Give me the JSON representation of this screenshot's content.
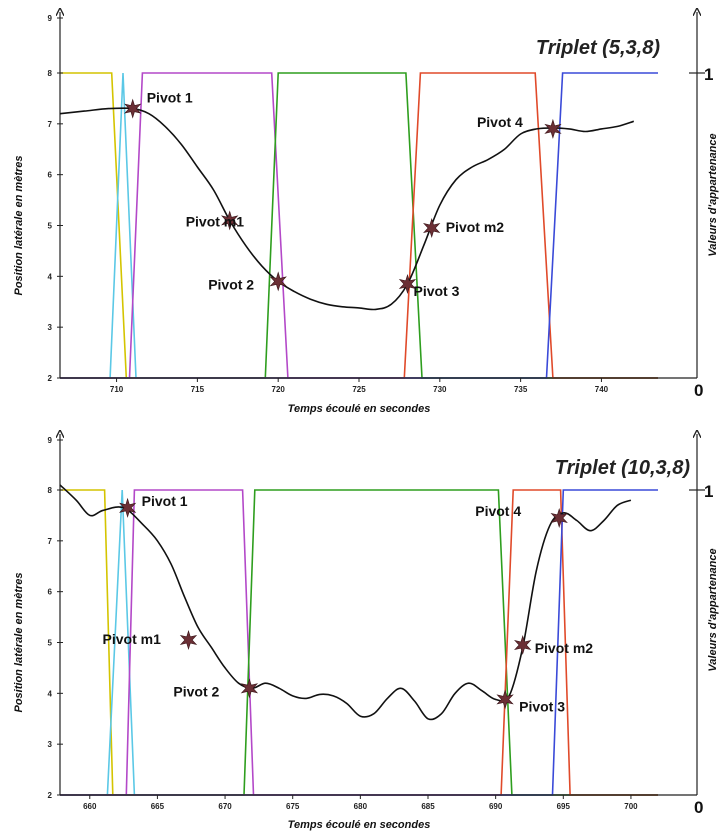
{
  "chart_data": [
    {
      "type": "line",
      "title": "Triplet (5,3,8)",
      "xlabel": "Temps écoulé en secondes",
      "ylabel": "Position latérale en mètres",
      "y2label": "Valeurs d'appartenance",
      "y2ticks": [
        "1",
        "0"
      ],
      "xlim": [
        706.5,
        743.5
      ],
      "ylim": [
        2,
        9
      ],
      "xticks": [
        710,
        715,
        720,
        725,
        730,
        735,
        740
      ],
      "yticks": [
        2,
        3,
        4,
        5,
        6,
        7,
        8,
        9
      ],
      "trajectory": {
        "x": [
          706.5,
          708,
          709.5,
          711,
          712,
          713,
          714,
          715,
          716,
          717,
          718,
          719,
          720,
          721,
          722,
          723,
          724,
          725,
          726,
          727,
          728,
          729,
          730,
          731,
          732,
          733,
          734,
          735,
          736,
          737,
          738,
          739,
          740,
          741,
          742
        ],
        "y": [
          7.2,
          7.25,
          7.3,
          7.3,
          7.2,
          6.95,
          6.6,
          6.15,
          5.7,
          5.1,
          4.6,
          4.2,
          3.9,
          3.7,
          3.55,
          3.45,
          3.4,
          3.38,
          3.35,
          3.45,
          3.85,
          4.6,
          5.4,
          5.9,
          6.15,
          6.3,
          6.5,
          6.8,
          6.9,
          6.92,
          6.9,
          6.85,
          6.9,
          6.95,
          7.05
        ]
      },
      "membership_series": [
        {
          "color": "#d4c400",
          "x": [
            706.5,
            709.7,
            710.6,
            743.5
          ],
          "y": [
            1,
            1,
            0,
            0
          ]
        },
        {
          "color": "#5bc8e6",
          "x": [
            706.5,
            709.6,
            710.4,
            711.2,
            743.5
          ],
          "y": [
            0,
            0,
            1,
            0,
            0
          ]
        },
        {
          "color": "#b348c8",
          "x": [
            706.5,
            710.8,
            711.6,
            719.6,
            720.6,
            743.5
          ],
          "y": [
            0,
            0,
            1,
            1,
            0,
            0
          ]
        },
        {
          "color": "#2e9e1e",
          "x": [
            706.5,
            719.2,
            720.0,
            727.9,
            728.9,
            743.5
          ],
          "y": [
            0,
            0,
            1,
            1,
            0,
            0
          ]
        },
        {
          "color": "#e04a2a",
          "x": [
            706.5,
            727.8,
            728.8,
            735.9,
            737.0,
            743.5
          ],
          "y": [
            0,
            0,
            1,
            1,
            0,
            0
          ]
        },
        {
          "color": "#3a4ad8",
          "x": [
            706.5,
            736.6,
            737.6,
            743.5
          ],
          "y": [
            0,
            0,
            1,
            1
          ]
        }
      ],
      "pivots": [
        {
          "label": "Pivot 1",
          "x": 711.0,
          "y": 7.3
        },
        {
          "label": "Pivot m1",
          "x": 717.0,
          "y": 5.1
        },
        {
          "label": "Pivot 2",
          "x": 720.0,
          "y": 3.9
        },
        {
          "label": "Pivot 3",
          "x": 728.0,
          "y": 3.85
        },
        {
          "label": "Pivot m2",
          "x": 729.5,
          "y": 4.95
        },
        {
          "label": "Pivot 4",
          "x": 737.0,
          "y": 6.9
        }
      ],
      "grid": false
    },
    {
      "type": "line",
      "title": "Triplet (10,3,8)",
      "xlabel": "Temps écoulé en secondes",
      "ylabel": "Position latérale en mètres",
      "y2label": "Valeurs d'appartenance",
      "y2ticks": [
        "1",
        "0"
      ],
      "xlim": [
        657.8,
        702
      ],
      "ylim": [
        2,
        9
      ],
      "xticks": [
        660,
        665,
        670,
        675,
        680,
        685,
        690,
        695,
        700
      ],
      "yticks": [
        2,
        3,
        4,
        5,
        6,
        7,
        8,
        9
      ],
      "trajectory": {
        "x": [
          657.8,
          659,
          660,
          661,
          662.5,
          664,
          665,
          666,
          667,
          668,
          669,
          670,
          671,
          672,
          673,
          674,
          675,
          676,
          677,
          678,
          679,
          680,
          681,
          682,
          683,
          684,
          685,
          686,
          687,
          688,
          689,
          690,
          691,
          692,
          693,
          694,
          695,
          696,
          697,
          698,
          699,
          700
        ],
        "y": [
          8.1,
          7.8,
          7.5,
          7.6,
          7.65,
          7.3,
          7.0,
          6.55,
          5.9,
          5.3,
          4.9,
          4.5,
          4.2,
          4.1,
          4.2,
          4.1,
          3.95,
          3.9,
          3.98,
          3.95,
          3.8,
          3.55,
          3.6,
          3.9,
          4.1,
          3.85,
          3.5,
          3.6,
          4.0,
          4.2,
          4.05,
          3.88,
          3.95,
          4.9,
          6.4,
          7.3,
          7.55,
          7.4,
          7.2,
          7.4,
          7.7,
          7.8
        ]
      },
      "membership_series": [
        {
          "color": "#d4c400",
          "x": [
            657.8,
            661.1,
            661.7,
            702
          ],
          "y": [
            1,
            1,
            0,
            0
          ]
        },
        {
          "color": "#5bc8e6",
          "x": [
            657.8,
            661.3,
            662.4,
            663.3,
            702
          ],
          "y": [
            0,
            0,
            1,
            0,
            0
          ]
        },
        {
          "color": "#b348c8",
          "x": [
            657.8,
            662.7,
            663.3,
            671.3,
            672.1,
            702
          ],
          "y": [
            0,
            0,
            1,
            1,
            0,
            0
          ]
        },
        {
          "color": "#2e9e1e",
          "x": [
            657.8,
            671.4,
            672.2,
            690.2,
            691.2,
            702
          ],
          "y": [
            0,
            0,
            1,
            1,
            0,
            0
          ]
        },
        {
          "color": "#e04a2a",
          "x": [
            657.8,
            690.4,
            691.3,
            694.8,
            695.5,
            702
          ],
          "y": [
            0,
            0,
            1,
            1,
            0,
            0
          ]
        },
        {
          "color": "#3a4ad8",
          "x": [
            657.8,
            694.2,
            695.0,
            700,
            702
          ],
          "y": [
            0,
            0,
            1,
            1,
            1
          ]
        }
      ],
      "pivots": [
        {
          "label": "Pivot 1",
          "x": 662.8,
          "y": 7.65
        },
        {
          "label": "Pivot m1",
          "x": 667.3,
          "y": 5.05
        },
        {
          "label": "Pivot 2",
          "x": 671.8,
          "y": 4.1
        },
        {
          "label": "Pivot 3",
          "x": 690.7,
          "y": 3.88
        },
        {
          "label": "Pivot m2",
          "x": 692.0,
          "y": 4.95
        },
        {
          "label": "Pivot 4",
          "x": 694.7,
          "y": 7.45
        }
      ],
      "grid": false
    }
  ]
}
